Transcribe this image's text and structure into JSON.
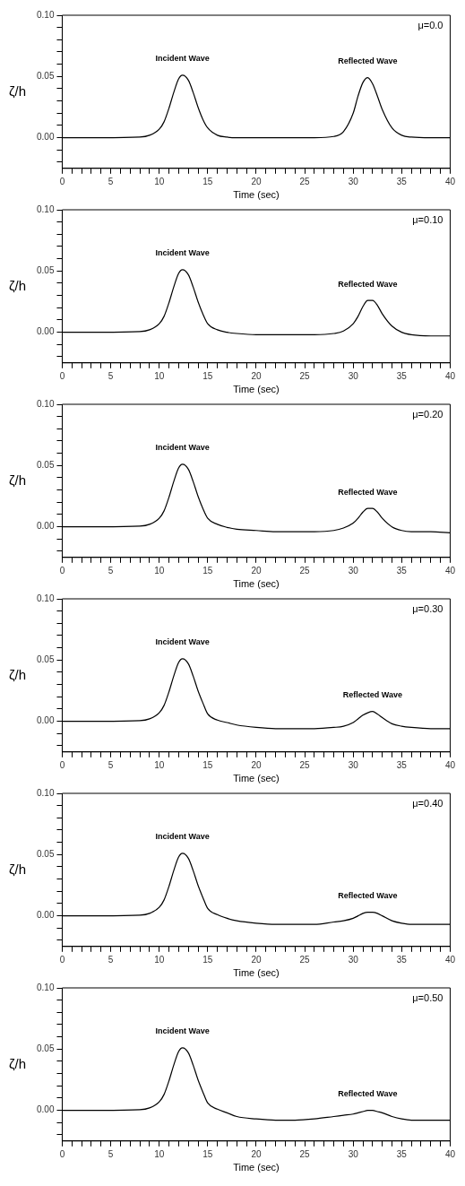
{
  "chart_data": [
    {
      "type": "line",
      "xlabel": "Time (sec)",
      "ylabel": "ζ/h",
      "xlim": [
        0,
        40
      ],
      "ylim": [
        -0.025,
        0.1
      ],
      "grid": false,
      "legend": false,
      "marker": "none",
      "line_style": "solid",
      "xticks": [
        0,
        {
          "value": 1,
          "label": null
        },
        {
          "value": 2,
          "label": null
        },
        {
          "value": 3,
          "label": null
        },
        {
          "value": 4,
          "label": null
        },
        5,
        {
          "value": 6,
          "label": null
        },
        {
          "value": 7,
          "label": null
        },
        {
          "value": 8,
          "label": null
        },
        {
          "value": 9,
          "label": null
        },
        10,
        {
          "value": 11,
          "label": null
        },
        {
          "value": 12,
          "label": null
        },
        {
          "value": 13,
          "label": null
        },
        {
          "value": 14,
          "label": null
        },
        15,
        {
          "value": 16,
          "label": null
        },
        {
          "value": 17,
          "label": null
        },
        {
          "value": 18,
          "label": null
        },
        {
          "value": 19,
          "label": null
        },
        20,
        {
          "value": 21,
          "label": null
        },
        {
          "value": 22,
          "label": null
        },
        {
          "value": 23,
          "label": null
        },
        {
          "value": 24,
          "label": null
        },
        25,
        {
          "value": 26,
          "label": null
        },
        {
          "value": 27,
          "label": null
        },
        {
          "value": 28,
          "label": null
        },
        {
          "value": 29,
          "label": null
        },
        30,
        {
          "value": 31,
          "label": null
        },
        {
          "value": 32,
          "label": null
        },
        {
          "value": 33,
          "label": null
        },
        {
          "value": 34,
          "label": null
        },
        35,
        {
          "value": 36,
          "label": null
        },
        {
          "value": 37,
          "label": null
        },
        {
          "value": 38,
          "label": null
        },
        {
          "value": 39,
          "label": null
        },
        40
      ],
      "yticks": [
        {
          "value": -0.02,
          "label": null
        },
        {
          "value": -0.01,
          "label": null
        },
        {
          "value": 0,
          "label": "0.00"
        },
        {
          "value": 0.01,
          "label": null
        },
        {
          "value": 0.02,
          "label": null
        },
        {
          "value": 0.03,
          "label": null
        },
        {
          "value": 0.04,
          "label": null
        },
        {
          "value": 0.05,
          "label": "0.05"
        },
        {
          "value": 0.06,
          "label": null
        },
        {
          "value": 0.07,
          "label": null
        },
        {
          "value": 0.08,
          "label": null
        },
        {
          "value": 0.09,
          "label": null
        },
        {
          "value": 0.1,
          "label": "0.10"
        }
      ],
      "annotations": [
        "μ=0.0",
        "Incident Wave",
        "Reflected Wave"
      ],
      "series": [
        {
          "color": "#000000",
          "x": [
            0,
            4,
            8,
            9,
            10,
            10.5,
            11,
            11.5,
            12,
            12.4,
            13,
            13.5,
            14,
            14.5,
            15,
            16,
            17,
            18,
            20,
            22,
            24,
            26,
            28,
            29,
            30,
            30.5,
            31,
            31.5,
            32,
            32.5,
            33,
            34,
            35,
            36,
            38,
            40
          ],
          "values": [
            0,
            0,
            0.0005,
            0.002,
            0.007,
            0.013,
            0.024,
            0.037,
            0.048,
            0.051,
            0.047,
            0.037,
            0.025,
            0.015,
            0.008,
            0.002,
            0.0005,
            0,
            0,
            0,
            0,
            0,
            0.001,
            0.005,
            0.02,
            0.034,
            0.045,
            0.049,
            0.044,
            0.034,
            0.023,
            0.008,
            0.002,
            0.0005,
            0,
            0
          ]
        }
      ]
    },
    {
      "type": "line",
      "xlabel": "Time (sec)",
      "ylabel": "ζ/h",
      "xlim": [
        0,
        40
      ],
      "ylim": [
        -0.025,
        0.1
      ],
      "grid": false,
      "legend": false,
      "marker": "none",
      "line_style": "solid",
      "xticks": [
        0,
        {
          "value": 1,
          "label": null
        },
        {
          "value": 2,
          "label": null
        },
        {
          "value": 3,
          "label": null
        },
        {
          "value": 4,
          "label": null
        },
        5,
        {
          "value": 6,
          "label": null
        },
        {
          "value": 7,
          "label": null
        },
        {
          "value": 8,
          "label": null
        },
        {
          "value": 9,
          "label": null
        },
        10,
        {
          "value": 11,
          "label": null
        },
        {
          "value": 12,
          "label": null
        },
        {
          "value": 13,
          "label": null
        },
        {
          "value": 14,
          "label": null
        },
        15,
        {
          "value": 16,
          "label": null
        },
        {
          "value": 17,
          "label": null
        },
        {
          "value": 18,
          "label": null
        },
        {
          "value": 19,
          "label": null
        },
        20,
        {
          "value": 21,
          "label": null
        },
        {
          "value": 22,
          "label": null
        },
        {
          "value": 23,
          "label": null
        },
        {
          "value": 24,
          "label": null
        },
        25,
        {
          "value": 26,
          "label": null
        },
        {
          "value": 27,
          "label": null
        },
        {
          "value": 28,
          "label": null
        },
        {
          "value": 29,
          "label": null
        },
        30,
        {
          "value": 31,
          "label": null
        },
        {
          "value": 32,
          "label": null
        },
        {
          "value": 33,
          "label": null
        },
        {
          "value": 34,
          "label": null
        },
        35,
        {
          "value": 36,
          "label": null
        },
        {
          "value": 37,
          "label": null
        },
        {
          "value": 38,
          "label": null
        },
        {
          "value": 39,
          "label": null
        },
        40
      ],
      "yticks": [
        {
          "value": -0.02,
          "label": null
        },
        {
          "value": -0.01,
          "label": null
        },
        {
          "value": 0,
          "label": "0.00"
        },
        {
          "value": 0.01,
          "label": null
        },
        {
          "value": 0.02,
          "label": null
        },
        {
          "value": 0.03,
          "label": null
        },
        {
          "value": 0.04,
          "label": null
        },
        {
          "value": 0.05,
          "label": "0.05"
        },
        {
          "value": 0.06,
          "label": null
        },
        {
          "value": 0.07,
          "label": null
        },
        {
          "value": 0.08,
          "label": null
        },
        {
          "value": 0.09,
          "label": null
        },
        {
          "value": 0.1,
          "label": "0.10"
        }
      ],
      "annotations": [
        "μ=0.10",
        "Incident Wave",
        "Reflected Wave"
      ],
      "series": [
        {
          "color": "#000000",
          "x": [
            0,
            4,
            8,
            9,
            10,
            10.5,
            11,
            11.5,
            12,
            12.4,
            13,
            13.5,
            14,
            14.5,
            15,
            16,
            17,
            18,
            20,
            22,
            24,
            26,
            28,
            29,
            30,
            30.5,
            31,
            31.5,
            32,
            32.5,
            33,
            34,
            35,
            36,
            38,
            40
          ],
          "values": [
            0,
            0,
            0.0005,
            0.002,
            0.007,
            0.013,
            0.024,
            0.037,
            0.048,
            0.051,
            0.047,
            0.037,
            0.025,
            0.015,
            0.007,
            0.002,
            0,
            -0.001,
            -0.002,
            -0.002,
            -0.002,
            -0.002,
            -0.001,
            0.001,
            0.007,
            0.013,
            0.021,
            0.026,
            0.026,
            0.022,
            0.015,
            0.005,
            0,
            -0.002,
            -0.003,
            -0.003
          ]
        }
      ]
    },
    {
      "type": "line",
      "xlabel": "Time (sec)",
      "ylabel": "ζ/h",
      "xlim": [
        0,
        40
      ],
      "ylim": [
        -0.025,
        0.1
      ],
      "grid": false,
      "legend": false,
      "marker": "none",
      "line_style": "solid",
      "xticks": [
        0,
        {
          "value": 1,
          "label": null
        },
        {
          "value": 2,
          "label": null
        },
        {
          "value": 3,
          "label": null
        },
        {
          "value": 4,
          "label": null
        },
        5,
        {
          "value": 6,
          "label": null
        },
        {
          "value": 7,
          "label": null
        },
        {
          "value": 8,
          "label": null
        },
        {
          "value": 9,
          "label": null
        },
        10,
        {
          "value": 11,
          "label": null
        },
        {
          "value": 12,
          "label": null
        },
        {
          "value": 13,
          "label": null
        },
        {
          "value": 14,
          "label": null
        },
        15,
        {
          "value": 16,
          "label": null
        },
        {
          "value": 17,
          "label": null
        },
        {
          "value": 18,
          "label": null
        },
        {
          "value": 19,
          "label": null
        },
        20,
        {
          "value": 21,
          "label": null
        },
        {
          "value": 22,
          "label": null
        },
        {
          "value": 23,
          "label": null
        },
        {
          "value": 24,
          "label": null
        },
        25,
        {
          "value": 26,
          "label": null
        },
        {
          "value": 27,
          "label": null
        },
        {
          "value": 28,
          "label": null
        },
        {
          "value": 29,
          "label": null
        },
        30,
        {
          "value": 31,
          "label": null
        },
        {
          "value": 32,
          "label": null
        },
        {
          "value": 33,
          "label": null
        },
        {
          "value": 34,
          "label": null
        },
        35,
        {
          "value": 36,
          "label": null
        },
        {
          "value": 37,
          "label": null
        },
        {
          "value": 38,
          "label": null
        },
        {
          "value": 39,
          "label": null
        },
        40
      ],
      "yticks": [
        {
          "value": -0.02,
          "label": null
        },
        {
          "value": -0.01,
          "label": null
        },
        {
          "value": 0,
          "label": "0.00"
        },
        {
          "value": 0.01,
          "label": null
        },
        {
          "value": 0.02,
          "label": null
        },
        {
          "value": 0.03,
          "label": null
        },
        {
          "value": 0.04,
          "label": null
        },
        {
          "value": 0.05,
          "label": "0.05"
        },
        {
          "value": 0.06,
          "label": null
        },
        {
          "value": 0.07,
          "label": null
        },
        {
          "value": 0.08,
          "label": null
        },
        {
          "value": 0.09,
          "label": null
        },
        {
          "value": 0.1,
          "label": "0.10"
        }
      ],
      "annotations": [
        "μ=0.20",
        "Incident Wave",
        "Reflected Wave"
      ],
      "series": [
        {
          "color": "#000000",
          "x": [
            0,
            4,
            8,
            9,
            10,
            10.5,
            11,
            11.5,
            12,
            12.4,
            13,
            13.5,
            14,
            14.5,
            15,
            16,
            17,
            18,
            20,
            22,
            24,
            26,
            28,
            29,
            30,
            30.5,
            31,
            31.5,
            32,
            32.5,
            33,
            34,
            35,
            36,
            38,
            40
          ],
          "values": [
            0,
            0,
            0.0005,
            0.002,
            0.007,
            0.013,
            0.024,
            0.037,
            0.048,
            0.051,
            0.047,
            0.037,
            0.025,
            0.015,
            0.007,
            0.002,
            -0.0005,
            -0.002,
            -0.003,
            -0.004,
            -0.004,
            -0.004,
            -0.003,
            -0.001,
            0.003,
            0.007,
            0.012,
            0.015,
            0.015,
            0.012,
            0.007,
            0,
            -0.003,
            -0.004,
            -0.004,
            -0.005
          ]
        }
      ]
    },
    {
      "type": "line",
      "xlabel": "Time (sec)",
      "ylabel": "ζ/h",
      "xlim": [
        0,
        40
      ],
      "ylim": [
        -0.025,
        0.1
      ],
      "grid": false,
      "legend": false,
      "marker": "none",
      "line_style": "solid",
      "xticks": [
        0,
        {
          "value": 1,
          "label": null
        },
        {
          "value": 2,
          "label": null
        },
        {
          "value": 3,
          "label": null
        },
        {
          "value": 4,
          "label": null
        },
        5,
        {
          "value": 6,
          "label": null
        },
        {
          "value": 7,
          "label": null
        },
        {
          "value": 8,
          "label": null
        },
        {
          "value": 9,
          "label": null
        },
        10,
        {
          "value": 11,
          "label": null
        },
        {
          "value": 12,
          "label": null
        },
        {
          "value": 13,
          "label": null
        },
        {
          "value": 14,
          "label": null
        },
        15,
        {
          "value": 16,
          "label": null
        },
        {
          "value": 17,
          "label": null
        },
        {
          "value": 18,
          "label": null
        },
        {
          "value": 19,
          "label": null
        },
        20,
        {
          "value": 21,
          "label": null
        },
        {
          "value": 22,
          "label": null
        },
        {
          "value": 23,
          "label": null
        },
        {
          "value": 24,
          "label": null
        },
        25,
        {
          "value": 26,
          "label": null
        },
        {
          "value": 27,
          "label": null
        },
        {
          "value": 28,
          "label": null
        },
        {
          "value": 29,
          "label": null
        },
        30,
        {
          "value": 31,
          "label": null
        },
        {
          "value": 32,
          "label": null
        },
        {
          "value": 33,
          "label": null
        },
        {
          "value": 34,
          "label": null
        },
        35,
        {
          "value": 36,
          "label": null
        },
        {
          "value": 37,
          "label": null
        },
        {
          "value": 38,
          "label": null
        },
        {
          "value": 39,
          "label": null
        },
        40
      ],
      "yticks": [
        {
          "value": -0.02,
          "label": null
        },
        {
          "value": -0.01,
          "label": null
        },
        {
          "value": 0,
          "label": "0.00"
        },
        {
          "value": 0.01,
          "label": null
        },
        {
          "value": 0.02,
          "label": null
        },
        {
          "value": 0.03,
          "label": null
        },
        {
          "value": 0.04,
          "label": null
        },
        {
          "value": 0.05,
          "label": "0.05"
        },
        {
          "value": 0.06,
          "label": null
        },
        {
          "value": 0.07,
          "label": null
        },
        {
          "value": 0.08,
          "label": null
        },
        {
          "value": 0.09,
          "label": null
        },
        {
          "value": 0.1,
          "label": "0.10"
        }
      ],
      "annotations": [
        "μ=0.30",
        "Incident Wave",
        "Reflected Wave"
      ],
      "series": [
        {
          "color": "#000000",
          "x": [
            0,
            4,
            8,
            9,
            10,
            10.5,
            11,
            11.5,
            12,
            12.4,
            13,
            13.5,
            14,
            14.5,
            15,
            16,
            17,
            18,
            20,
            22,
            24,
            26,
            28,
            29,
            30,
            30.5,
            31,
            31.5,
            32,
            32.5,
            33,
            34,
            35,
            36,
            38,
            40
          ],
          "values": [
            0,
            0,
            0.0005,
            0.002,
            0.007,
            0.013,
            0.024,
            0.037,
            0.048,
            0.051,
            0.047,
            0.037,
            0.025,
            0.015,
            0.006,
            0.001,
            -0.001,
            -0.003,
            -0.005,
            -0.006,
            -0.006,
            -0.006,
            -0.005,
            -0.004,
            -0.001,
            0.002,
            0.005,
            0.007,
            0.008,
            0.006,
            0.003,
            -0.002,
            -0.004,
            -0.005,
            -0.006,
            -0.006
          ]
        }
      ]
    },
    {
      "type": "line",
      "xlabel": "Time (sec)",
      "ylabel": "ζ/h",
      "xlim": [
        0,
        40
      ],
      "ylim": [
        -0.025,
        0.1
      ],
      "grid": false,
      "legend": false,
      "marker": "none",
      "line_style": "solid",
      "xticks": [
        0,
        {
          "value": 1,
          "label": null
        },
        {
          "value": 2,
          "label": null
        },
        {
          "value": 3,
          "label": null
        },
        {
          "value": 4,
          "label": null
        },
        5,
        {
          "value": 6,
          "label": null
        },
        {
          "value": 7,
          "label": null
        },
        {
          "value": 8,
          "label": null
        },
        {
          "value": 9,
          "label": null
        },
        10,
        {
          "value": 11,
          "label": null
        },
        {
          "value": 12,
          "label": null
        },
        {
          "value": 13,
          "label": null
        },
        {
          "value": 14,
          "label": null
        },
        15,
        {
          "value": 16,
          "label": null
        },
        {
          "value": 17,
          "label": null
        },
        {
          "value": 18,
          "label": null
        },
        {
          "value": 19,
          "label": null
        },
        20,
        {
          "value": 21,
          "label": null
        },
        {
          "value": 22,
          "label": null
        },
        {
          "value": 23,
          "label": null
        },
        {
          "value": 24,
          "label": null
        },
        25,
        {
          "value": 26,
          "label": null
        },
        {
          "value": 27,
          "label": null
        },
        {
          "value": 28,
          "label": null
        },
        {
          "value": 29,
          "label": null
        },
        30,
        {
          "value": 31,
          "label": null
        },
        {
          "value": 32,
          "label": null
        },
        {
          "value": 33,
          "label": null
        },
        {
          "value": 34,
          "label": null
        },
        35,
        {
          "value": 36,
          "label": null
        },
        {
          "value": 37,
          "label": null
        },
        {
          "value": 38,
          "label": null
        },
        {
          "value": 39,
          "label": null
        },
        40
      ],
      "yticks": [
        {
          "value": -0.02,
          "label": null
        },
        {
          "value": -0.01,
          "label": null
        },
        {
          "value": 0,
          "label": "0.00"
        },
        {
          "value": 0.01,
          "label": null
        },
        {
          "value": 0.02,
          "label": null
        },
        {
          "value": 0.03,
          "label": null
        },
        {
          "value": 0.04,
          "label": null
        },
        {
          "value": 0.05,
          "label": "0.05"
        },
        {
          "value": 0.06,
          "label": null
        },
        {
          "value": 0.07,
          "label": null
        },
        {
          "value": 0.08,
          "label": null
        },
        {
          "value": 0.09,
          "label": null
        },
        {
          "value": 0.1,
          "label": "0.10"
        }
      ],
      "annotations": [
        "μ=0.40",
        "Incident Wave",
        "Reflected Wave"
      ],
      "series": [
        {
          "color": "#000000",
          "x": [
            0,
            4,
            8,
            9,
            10,
            10.5,
            11,
            11.5,
            12,
            12.4,
            13,
            13.5,
            14,
            14.5,
            15,
            16,
            17,
            18,
            20,
            22,
            24,
            26,
            28,
            29,
            30,
            30.5,
            31,
            31.5,
            32,
            32.5,
            33,
            34,
            35,
            36,
            38,
            40
          ],
          "values": [
            0,
            0,
            0.0005,
            0.002,
            0.007,
            0.013,
            0.024,
            0.037,
            0.048,
            0.051,
            0.047,
            0.037,
            0.025,
            0.015,
            0.006,
            0.001,
            -0.002,
            -0.004,
            -0.006,
            -0.007,
            -0.007,
            -0.007,
            -0.005,
            -0.004,
            -0.002,
            0,
            0.002,
            0.003,
            0.003,
            0.002,
            0,
            -0.004,
            -0.006,
            -0.007,
            -0.007,
            -0.007
          ]
        }
      ]
    },
    {
      "type": "line",
      "xlabel": "Time (sec)",
      "ylabel": "ζ/h",
      "xlim": [
        0,
        40
      ],
      "ylim": [
        -0.025,
        0.1
      ],
      "grid": false,
      "legend": false,
      "marker": "none",
      "line_style": "solid",
      "xticks": [
        0,
        {
          "value": 1,
          "label": null
        },
        {
          "value": 2,
          "label": null
        },
        {
          "value": 3,
          "label": null
        },
        {
          "value": 4,
          "label": null
        },
        5,
        {
          "value": 6,
          "label": null
        },
        {
          "value": 7,
          "label": null
        },
        {
          "value": 8,
          "label": null
        },
        {
          "value": 9,
          "label": null
        },
        10,
        {
          "value": 11,
          "label": null
        },
        {
          "value": 12,
          "label": null
        },
        {
          "value": 13,
          "label": null
        },
        {
          "value": 14,
          "label": null
        },
        15,
        {
          "value": 16,
          "label": null
        },
        {
          "value": 17,
          "label": null
        },
        {
          "value": 18,
          "label": null
        },
        {
          "value": 19,
          "label": null
        },
        20,
        {
          "value": 21,
          "label": null
        },
        {
          "value": 22,
          "label": null
        },
        {
          "value": 23,
          "label": null
        },
        {
          "value": 24,
          "label": null
        },
        25,
        {
          "value": 26,
          "label": null
        },
        {
          "value": 27,
          "label": null
        },
        {
          "value": 28,
          "label": null
        },
        {
          "value": 29,
          "label": null
        },
        30,
        {
          "value": 31,
          "label": null
        },
        {
          "value": 32,
          "label": null
        },
        {
          "value": 33,
          "label": null
        },
        {
          "value": 34,
          "label": null
        },
        35,
        {
          "value": 36,
          "label": null
        },
        {
          "value": 37,
          "label": null
        },
        {
          "value": 38,
          "label": null
        },
        {
          "value": 39,
          "label": null
        },
        40
      ],
      "yticks": [
        {
          "value": -0.02,
          "label": null
        },
        {
          "value": -0.01,
          "label": null
        },
        {
          "value": 0,
          "label": "0.00"
        },
        {
          "value": 0.01,
          "label": null
        },
        {
          "value": 0.02,
          "label": null
        },
        {
          "value": 0.03,
          "label": null
        },
        {
          "value": 0.04,
          "label": null
        },
        {
          "value": 0.05,
          "label": "0.05"
        },
        {
          "value": 0.06,
          "label": null
        },
        {
          "value": 0.07,
          "label": null
        },
        {
          "value": 0.08,
          "label": null
        },
        {
          "value": 0.09,
          "label": null
        },
        {
          "value": 0.1,
          "label": "0.10"
        }
      ],
      "annotations": [
        "μ=0.50",
        "Incident Wave",
        "Reflected Wave"
      ],
      "series": [
        {
          "color": "#000000",
          "x": [
            0,
            4,
            8,
            9,
            10,
            10.5,
            11,
            11.5,
            12,
            12.4,
            13,
            13.5,
            14,
            14.5,
            15,
            16,
            17,
            18,
            20,
            22,
            24,
            26,
            28,
            29,
            30,
            30.5,
            31,
            31.5,
            32,
            32.5,
            33,
            34,
            35,
            36,
            38,
            40
          ],
          "values": [
            0,
            0,
            0.0005,
            0.002,
            0.007,
            0.013,
            0.024,
            0.037,
            0.048,
            0.051,
            0.047,
            0.037,
            0.025,
            0.015,
            0.006,
            0.001,
            -0.002,
            -0.005,
            -0.007,
            -0.008,
            -0.008,
            -0.007,
            -0.005,
            -0.004,
            -0.003,
            -0.002,
            -0.001,
            0,
            0,
            -0.001,
            -0.002,
            -0.005,
            -0.007,
            -0.008,
            -0.008,
            -0.008
          ]
        }
      ]
    }
  ]
}
